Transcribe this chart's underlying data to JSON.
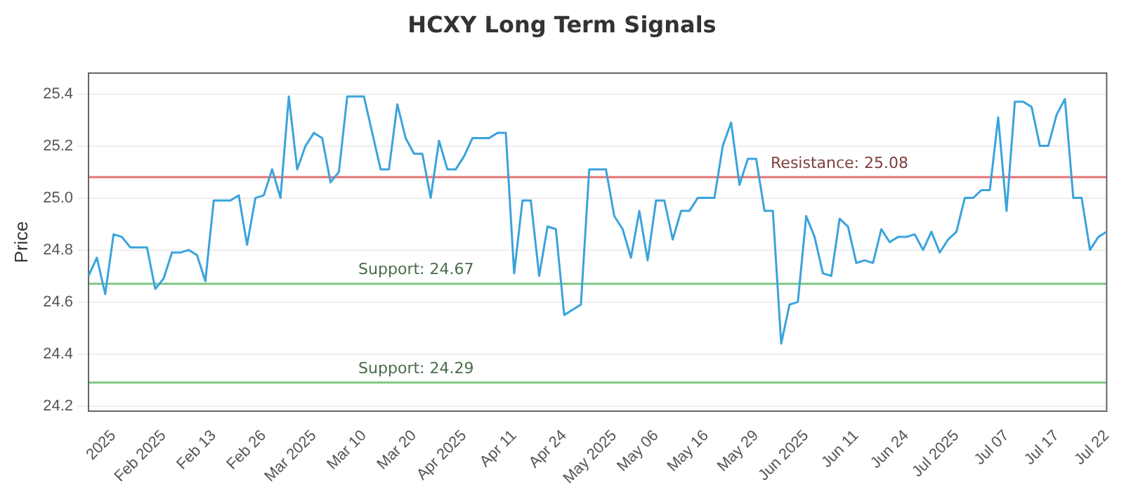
{
  "chart_data": {
    "type": "line",
    "title": "HCXY Long Term Signals",
    "ylabel": "Price",
    "categories": [
      null,
      null,
      null,
      "2025",
      null,
      null,
      null,
      null,
      null,
      "Feb 2025",
      null,
      null,
      null,
      null,
      null,
      "Feb 13",
      null,
      null,
      null,
      null,
      null,
      "Feb 26",
      null,
      null,
      null,
      null,
      null,
      "Mar 2025",
      null,
      null,
      null,
      null,
      null,
      "Mar 10",
      null,
      null,
      null,
      null,
      null,
      "Mar 20",
      null,
      null,
      null,
      null,
      null,
      "Apr 2025",
      null,
      null,
      null,
      null,
      null,
      "Apr 11",
      null,
      null,
      null,
      null,
      null,
      "Apr 24",
      null,
      null,
      null,
      null,
      null,
      "May 2025",
      null,
      null,
      null,
      null,
      "May 06",
      null,
      null,
      null,
      null,
      null,
      "May 16",
      null,
      null,
      null,
      null,
      null,
      "May 29",
      null,
      null,
      null,
      null,
      null,
      "Jun 2025",
      null,
      null,
      null,
      null,
      null,
      "Jun 11",
      null,
      null,
      null,
      null,
      null,
      "Jun 24",
      null,
      null,
      null,
      null,
      null,
      "Jul 2025",
      null,
      null,
      null,
      null,
      null,
      "Jul 07",
      null,
      null,
      null,
      null,
      null,
      "Jul 17",
      null,
      null,
      null,
      null,
      null,
      "Jul 22"
    ],
    "series": [
      {
        "color": "#3aa3dc",
        "values": [
          24.7,
          24.77,
          24.63,
          24.86,
          24.85,
          24.81,
          24.81,
          24.81,
          24.65,
          24.69,
          24.79,
          24.79,
          24.8,
          24.78,
          24.68,
          24.99,
          24.99,
          24.99,
          25.01,
          24.82,
          25.0,
          25.01,
          25.11,
          25.0,
          25.39,
          25.11,
          25.2,
          25.25,
          25.23,
          25.06,
          25.1,
          25.39,
          25.39,
          25.39,
          25.25,
          25.11,
          25.11,
          25.36,
          25.23,
          25.17,
          25.17,
          25.0,
          25.22,
          25.11,
          25.11,
          25.16,
          25.23,
          25.23,
          25.23,
          25.25,
          25.25,
          24.71,
          24.99,
          24.99,
          24.7,
          24.89,
          24.88,
          24.55,
          24.57,
          24.59,
          25.11,
          25.11,
          25.11,
          24.93,
          24.88,
          24.77,
          24.95,
          24.76,
          24.99,
          24.99,
          24.84,
          24.95,
          24.95,
          25.0,
          25.0,
          25.0,
          25.2,
          25.29,
          25.05,
          25.15,
          25.15,
          24.95,
          24.95,
          24.44,
          24.59,
          24.6,
          24.93,
          24.85,
          24.71,
          24.7,
          24.92,
          24.89,
          24.75,
          24.76,
          24.75,
          24.88,
          24.83,
          24.85,
          24.85,
          24.86,
          24.8,
          24.87,
          24.79,
          24.84,
          24.87,
          25.0,
          25.0,
          25.03,
          25.03,
          25.31,
          24.95,
          25.37,
          25.37,
          25.35,
          25.2,
          25.2,
          25.32,
          25.38,
          25.0,
          25.0,
          24.8,
          24.85,
          24.87
        ]
      }
    ],
    "ylim": [
      24.18,
      25.48
    ],
    "yticks": [
      {
        "value": 24.2,
        "label": "24.2"
      },
      {
        "value": 24.4,
        "label": "24.4"
      },
      {
        "value": 24.6,
        "label": "24.6"
      },
      {
        "value": 24.8,
        "label": "24.8"
      },
      {
        "value": 25.0,
        "label": "25.0"
      },
      {
        "value": 25.2,
        "label": "25.2"
      },
      {
        "value": 25.4,
        "label": "25.4"
      }
    ],
    "ref_lines": [
      {
        "axis": "y",
        "value": 25.08,
        "label": "Resistance: 25.08",
        "color": "#e57373"
      },
      {
        "axis": "y",
        "value": 24.67,
        "label": "Support: 24.67",
        "color": "#81c784"
      },
      {
        "axis": "y",
        "value": 24.29,
        "label": "Support: 24.29",
        "color": "#81c784"
      }
    ],
    "grid": "y",
    "marker": "none",
    "legend": false
  }
}
